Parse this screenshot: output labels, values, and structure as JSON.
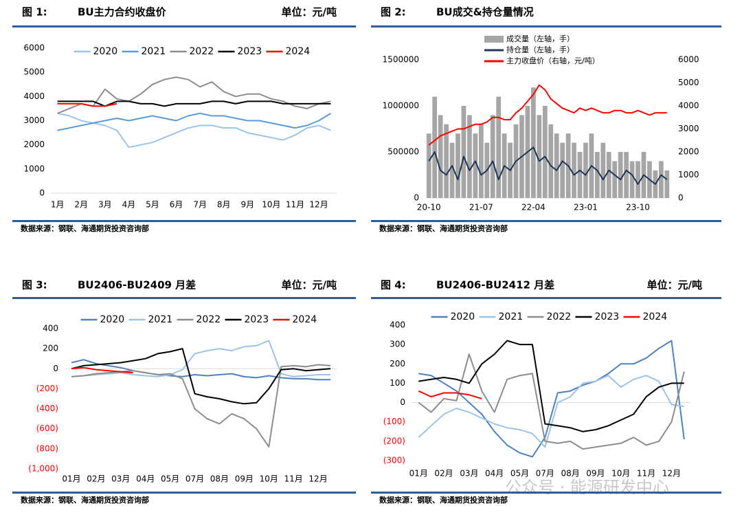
{
  "chart_data": [
    {
      "type": "line",
      "figure_label": "图 1:",
      "title": "BU主力合约收盘价",
      "unit": "单位：元/吨",
      "source": "数据来源：钢联、海通期货投资咨询部",
      "categories": [
        "1月",
        null,
        "2月",
        null,
        "3月",
        null,
        "4月",
        null,
        "5月",
        null,
        "6月",
        null,
        "7月",
        null,
        "8月",
        null,
        "9月",
        null,
        "10月",
        null,
        "11月",
        null,
        "12月",
        null
      ],
      "ylim": [
        0,
        6000
      ],
      "yticks": [
        0,
        1000,
        2000,
        3000,
        4000,
        5000,
        6000
      ],
      "legend": "top",
      "series": [
        {
          "name": "2020",
          "color": "#9dc3e6",
          "values": [
            3300,
            3200,
            3000,
            2900,
            2800,
            2600,
            1900,
            2000,
            2100,
            2300,
            2500,
            2700,
            2800,
            2800,
            2700,
            2700,
            2500,
            2400,
            2300,
            2200,
            2400,
            2700,
            2800,
            2600
          ]
        },
        {
          "name": "2021",
          "color": "#5b9bd5",
          "values": [
            2600,
            2700,
            2800,
            2900,
            3000,
            3100,
            3000,
            3100,
            3200,
            3100,
            3000,
            3200,
            3300,
            3200,
            3200,
            3100,
            3000,
            3000,
            2900,
            2800,
            2700,
            2800,
            3000,
            3300
          ]
        },
        {
          "name": "2022",
          "color": "#8c8c8c",
          "values": [
            3300,
            3500,
            3700,
            3600,
            4300,
            3900,
            3800,
            4100,
            4500,
            4700,
            4800,
            4700,
            4400,
            4600,
            4200,
            4000,
            4100,
            4100,
            3900,
            3800,
            3600,
            3500,
            3700,
            3800
          ]
        },
        {
          "name": "2023",
          "color": "#000000",
          "values": [
            3800,
            3800,
            3800,
            3800,
            3600,
            3800,
            3800,
            3700,
            3700,
            3600,
            3700,
            3700,
            3700,
            3800,
            3800,
            3700,
            3800,
            3800,
            3800,
            3700,
            3700,
            3700,
            3700,
            3700
          ]
        },
        {
          "name": "2024",
          "color": "#ff0000",
          "values": [
            3700,
            3700,
            3700,
            3600,
            3600,
            3700,
            null,
            null,
            null,
            null,
            null,
            null,
            null,
            null,
            null,
            null,
            null,
            null,
            null,
            null,
            null,
            null,
            null,
            null
          ]
        }
      ]
    },
    {
      "type": "combo",
      "figure_label": "图 2:",
      "title": "BU成交&持仓量情况",
      "source": "数据来源：钢联、海通期货投资咨询部",
      "categories": [
        "20-10",
        null,
        null,
        null,
        null,
        null,
        null,
        null,
        null,
        "21-07",
        null,
        null,
        null,
        null,
        null,
        null,
        null,
        null,
        "22-04",
        null,
        null,
        null,
        null,
        null,
        null,
        null,
        null,
        "23-01",
        null,
        null,
        null,
        null,
        null,
        null,
        null,
        null,
        "23-10",
        null,
        null,
        null,
        null,
        null
      ],
      "ylim": [
        0,
        1500000
      ],
      "yticks": [
        0,
        500000,
        1000000,
        1500000
      ],
      "y2lim": [
        0,
        6000
      ],
      "y2ticks": [
        0,
        1000,
        2000,
        3000,
        4000,
        5000,
        6000
      ],
      "legend": "top-left",
      "series": [
        {
          "name": "成交量（左轴，手）",
          "type": "bar",
          "color": "#a6a6a6",
          "values": [
            700000,
            1100000,
            900000,
            800000,
            600000,
            700000,
            1000000,
            900000,
            700000,
            800000,
            600000,
            900000,
            1100000,
            700000,
            600000,
            800000,
            900000,
            1000000,
            1200000,
            900000,
            1000000,
            800000,
            700000,
            600000,
            700000,
            600000,
            500000,
            600000,
            700000,
            500000,
            600000,
            500000,
            400000,
            500000,
            500000,
            400000,
            400000,
            500000,
            400000,
            300000,
            400000,
            300000
          ]
        },
        {
          "name": "持仓量（左轴，手）",
          "type": "line",
          "color": "#1f3556",
          "values": [
            400000,
            500000,
            300000,
            250000,
            350000,
            200000,
            450000,
            300000,
            400000,
            250000,
            300000,
            400000,
            200000,
            350000,
            300000,
            400000,
            450000,
            500000,
            550000,
            400000,
            450000,
            350000,
            300000,
            400000,
            350000,
            250000,
            300000,
            250000,
            350000,
            300000,
            200000,
            300000,
            250000,
            200000,
            300000,
            250000,
            150000,
            250000,
            200000,
            150000,
            250000,
            200000
          ]
        },
        {
          "name": "主力收盘价（右轴，元/吨）",
          "type": "line",
          "axis": "y2",
          "color": "#ff0000",
          "values": [
            2300,
            2500,
            2700,
            2800,
            2900,
            3000,
            3000,
            3100,
            3200,
            3200,
            3300,
            3500,
            3500,
            3400,
            3400,
            3700,
            3900,
            4200,
            4500,
            4900,
            4700,
            4300,
            4100,
            3900,
            3800,
            3700,
            3900,
            3800,
            3900,
            3800,
            3700,
            3700,
            3800,
            3800,
            3700,
            3700,
            3800,
            3700,
            3600,
            3700,
            3700,
            3700
          ]
        }
      ]
    },
    {
      "type": "line",
      "figure_label": "图 3:",
      "title": "BU2406-BU2409 月差",
      "unit": "单位：元/吨",
      "source": "数据来源：钢联、海通期货投资咨询部",
      "categories": [
        "01月",
        null,
        "02月",
        null,
        "03月",
        null,
        "04月",
        null,
        "05月",
        null,
        "07月",
        null,
        "08月",
        null,
        "09月",
        null,
        "10月",
        null,
        "11月",
        null,
        "12月",
        null
      ],
      "ylim": [
        -1000,
        400
      ],
      "yticks": [
        {
          "value": -1000,
          "label": "(1,000)"
        },
        {
          "value": -800,
          "label": "(800)"
        },
        {
          "value": -600,
          "label": "(600)"
        },
        {
          "value": -400,
          "label": "(400)"
        },
        {
          "value": -200,
          "label": "(200)"
        },
        0,
        200,
        400
      ],
      "negative_tick_color": "#ff0000",
      "legend": "top",
      "series": [
        {
          "name": "2020",
          "color": "#4f81bd",
          "values": [
            60,
            90,
            50,
            30,
            10,
            -20,
            -40,
            -60,
            -70,
            -80,
            -60,
            -70,
            -60,
            -50,
            -80,
            -90,
            -70,
            -90,
            -100,
            -100,
            -110,
            -110
          ]
        },
        {
          "name": "2021",
          "color": "#9dc3e6",
          "values": [
            -80,
            -70,
            -60,
            -50,
            -40,
            -60,
            -70,
            -80,
            -60,
            -10,
            150,
            180,
            200,
            180,
            220,
            230,
            280,
            -50,
            -80,
            -70,
            -60,
            -60
          ]
        },
        {
          "name": "2022",
          "color": "#8c8c8c",
          "values": [
            -80,
            -70,
            -50,
            -40,
            -30,
            -20,
            -40,
            -60,
            -50,
            -100,
            -400,
            -500,
            -550,
            -450,
            -500,
            -600,
            -780,
            20,
            30,
            20,
            40,
            30
          ]
        },
        {
          "name": "2023",
          "color": "#000000",
          "values": [
            0,
            30,
            40,
            50,
            60,
            80,
            100,
            150,
            170,
            200,
            -250,
            -280,
            -300,
            -330,
            -350,
            -340,
            -200,
            -10,
            0,
            -20,
            -10,
            0
          ]
        },
        {
          "name": "2024",
          "color": "#ff0000",
          "values": [
            0,
            10,
            -10,
            -20,
            -30,
            -40,
            null,
            null,
            null,
            null,
            null,
            null,
            null,
            null,
            null,
            null,
            null,
            null,
            null,
            null,
            null,
            null
          ]
        }
      ]
    },
    {
      "type": "line",
      "figure_label": "图 4:",
      "title": "BU2406-BU2412 月差",
      "unit": "单位：元/吨",
      "source": "数据来源：钢联、海通期货投资咨询部",
      "categories": [
        "01月",
        null,
        "02月",
        null,
        "03月",
        null,
        "04月",
        null,
        "05月",
        null,
        "07月",
        null,
        "08月",
        null,
        "09月",
        null,
        "10月",
        null,
        "11月",
        null,
        "12月",
        null
      ],
      "ylim": [
        -300,
        400
      ],
      "yticks": [
        {
          "value": -300,
          "label": "(300)"
        },
        {
          "value": -200,
          "label": "(200)"
        },
        {
          "value": -100,
          "label": "(100)"
        },
        0,
        100,
        200,
        300,
        400
      ],
      "negative_tick_color": "#ff0000",
      "legend": "top",
      "series": [
        {
          "name": "2020",
          "color": "#4f81bd",
          "values": [
            150,
            140,
            100,
            60,
            0,
            -60,
            -150,
            -220,
            -260,
            -280,
            -180,
            50,
            60,
            90,
            110,
            150,
            200,
            200,
            230,
            280,
            320,
            -190
          ]
        },
        {
          "name": "2021",
          "color": "#9dc3e6",
          "values": [
            -180,
            -120,
            -60,
            -30,
            -50,
            -80,
            -110,
            -130,
            -140,
            -160,
            -230,
            0,
            30,
            100,
            110,
            140,
            80,
            120,
            140,
            110,
            -10,
            -20
          ]
        },
        {
          "name": "2022",
          "color": "#8c8c8c",
          "values": [
            0,
            -50,
            20,
            10,
            250,
            60,
            -50,
            120,
            140,
            150,
            -200,
            -210,
            -200,
            -240,
            -230,
            -220,
            -210,
            -180,
            -220,
            -200,
            -100,
            160
          ]
        },
        {
          "name": "2023",
          "color": "#000000",
          "values": [
            110,
            120,
            130,
            120,
            100,
            200,
            250,
            320,
            300,
            300,
            -110,
            -120,
            -130,
            -150,
            -140,
            -120,
            -90,
            -60,
            30,
            80,
            100,
            100
          ]
        },
        {
          "name": "2024",
          "color": "#ff0000",
          "values": [
            60,
            30,
            50,
            50,
            40,
            20,
            null,
            null,
            null,
            null,
            null,
            null,
            null,
            null,
            null,
            null,
            null,
            null,
            null,
            null,
            null,
            null
          ]
        }
      ]
    }
  ],
  "watermark": "公众号 · 能源研发中心"
}
